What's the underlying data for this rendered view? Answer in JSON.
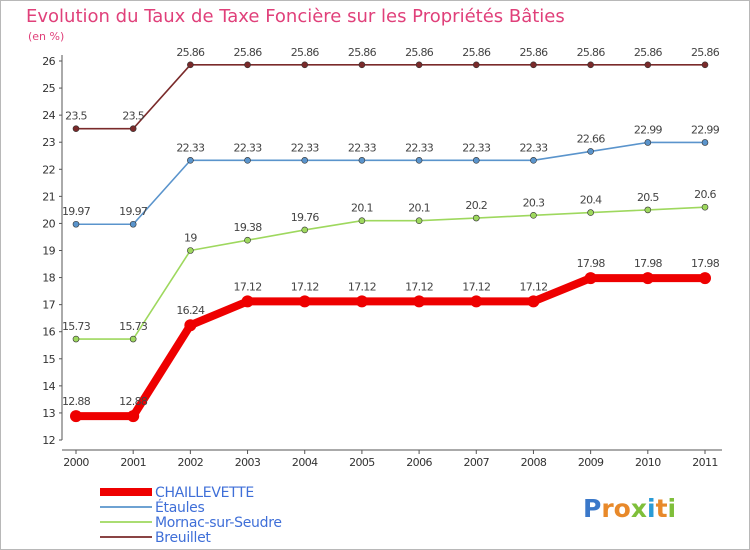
{
  "chart_data": {
    "type": "line",
    "title": "Evolution du Taux de Taxe Foncière sur les Propriétés Bâties",
    "subtitle": "(en %)",
    "xlabel": "",
    "ylabel": "",
    "ylim": [
      12,
      26
    ],
    "yticks": [
      "12",
      "13",
      "14",
      "15",
      "16",
      "17",
      "18",
      "19",
      "20",
      "21",
      "22",
      "23",
      "24",
      "25",
      "26"
    ],
    "categories": [
      "2000",
      "2001",
      "2002",
      "2003",
      "2004",
      "2005",
      "2006",
      "2007",
      "2008",
      "2009",
      "2010",
      "2011"
    ],
    "series": [
      {
        "name": "Breuillet",
        "color": "#7a2a2a",
        "values": [
          23.5,
          23.5,
          25.86,
          25.86,
          25.86,
          25.86,
          25.86,
          25.86,
          25.86,
          25.86,
          25.86,
          25.86
        ],
        "labels": [
          "23.5",
          "23.5",
          "25.86",
          "25.86",
          "25.86",
          "25.86",
          "25.86",
          "25.86",
          "25.86",
          "25.86",
          "25.86",
          "25.86"
        ]
      },
      {
        "name": "Étaules",
        "color": "#5a94cc",
        "values": [
          19.97,
          19.97,
          22.33,
          22.33,
          22.33,
          22.33,
          22.33,
          22.33,
          22.33,
          22.66,
          22.99,
          22.99
        ],
        "labels": [
          "19.97",
          "19.97",
          "22.33",
          "22.33",
          "22.33",
          "22.33",
          "22.33",
          "22.33",
          "22.33",
          "22.66",
          "22.99",
          "22.99"
        ]
      },
      {
        "name": "Mornac-sur-Seudre",
        "color": "#9ed85e",
        "values": [
          15.73,
          15.73,
          19,
          19.38,
          19.76,
          20.1,
          20.1,
          20.2,
          20.3,
          20.4,
          20.5,
          20.6
        ],
        "labels": [
          "15.73",
          "15.73",
          "19",
          "19.38",
          "19.76",
          "20.1",
          "20.1",
          "20.2",
          "20.3",
          "20.4",
          "20.5",
          "20.6"
        ]
      },
      {
        "name": "CHAILLEVETTE",
        "color": "#ee0000",
        "values": [
          12.88,
          12.88,
          16.24,
          17.12,
          17.12,
          17.12,
          17.12,
          17.12,
          17.12,
          17.98,
          17.98,
          17.98
        ],
        "labels": [
          "12.88",
          "12.88",
          "16.24",
          "17.12",
          "17.12",
          "17.12",
          "17.12",
          "17.12",
          "17.12",
          "17.98",
          "17.98",
          "17.98"
        ]
      }
    ],
    "legend": [
      "CHAILLEVETTE",
      "Étaules",
      "Mornac-sur-Seudre",
      "Breuillet"
    ],
    "legend_position": "bottom-left",
    "grid": false
  },
  "logo": {
    "text": "Proxiti"
  }
}
